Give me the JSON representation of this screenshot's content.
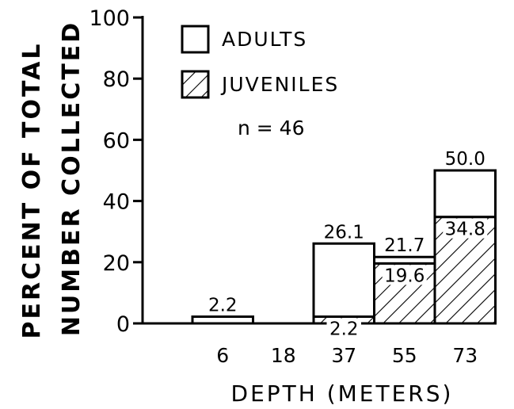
{
  "chart_data": {
    "type": "bar",
    "stacked": true,
    "ylabel_line1": "PERCENT OF TOTAL",
    "ylabel_line2": "NUMBER COLLECTED",
    "xlabel": "DEPTH (METERS)",
    "categories": [
      "6",
      "18",
      "37",
      "55",
      "73"
    ],
    "yticks": [
      "0",
      "20",
      "40",
      "60",
      "80",
      "100"
    ],
    "ylim": [
      0,
      100
    ],
    "series": [
      {
        "name": "ADULTS",
        "values": [
          2.2,
          0,
          23.9,
          2.1,
          15.2
        ],
        "pattern": "none"
      },
      {
        "name": "JUVENILES",
        "values": [
          0,
          0,
          2.2,
          19.6,
          34.8
        ],
        "pattern": "hatch"
      }
    ],
    "data_labels": [
      {
        "category": "6",
        "text": "2.2",
        "position": "above"
      },
      {
        "category": "37",
        "text": "26.1",
        "position": "above"
      },
      {
        "category": "37",
        "text": "2.2",
        "position": "inside-top-of-juveniles"
      },
      {
        "category": "55",
        "text": "21.7",
        "position": "above"
      },
      {
        "category": "55",
        "text": "19.6",
        "position": "inside-top-of-juveniles"
      },
      {
        "category": "73",
        "text": "50.0",
        "position": "above"
      },
      {
        "category": "73",
        "text": "34.8",
        "position": "inside-top-of-juveniles"
      }
    ],
    "annotation": "n = 46",
    "legend_position": "top-left-inside",
    "grid": false
  }
}
